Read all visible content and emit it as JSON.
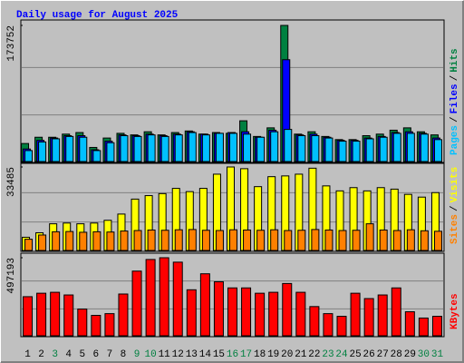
{
  "chart_data": [
    {
      "type": "bar",
      "title": "Daily usage for August 2025",
      "title_color": "#0000ff",
      "series": [
        {
          "name": "Hits",
          "color": "#008040",
          "values": [
            23000,
            31000,
            31000,
            35000,
            37000,
            18000,
            30000,
            36000,
            34000,
            38000,
            34000,
            37000,
            39000,
            35000,
            37000,
            36000,
            52000,
            32000,
            43000,
            173752,
            35000,
            38000,
            32000,
            28000,
            28000,
            33000,
            35000,
            40000,
            43000,
            38000,
            34000
          ]
        },
        {
          "name": "Files",
          "color": "#0000ff",
          "values": [
            16000,
            27000,
            30000,
            33000,
            33000,
            15000,
            26000,
            34000,
            33000,
            35000,
            33000,
            35000,
            38000,
            35000,
            36000,
            37000,
            38000,
            31000,
            40000,
            130000,
            34000,
            35000,
            31000,
            27000,
            27000,
            30000,
            32000,
            37000,
            38000,
            36000,
            30000
          ]
        },
        {
          "name": "Pages",
          "color": "#00c0ff",
          "values": [
            14000,
            25000,
            29000,
            32000,
            31000,
            14000,
            24000,
            33000,
            32000,
            34000,
            32000,
            34000,
            37000,
            34000,
            36000,
            36000,
            35000,
            31000,
            38000,
            41000,
            33000,
            33000,
            30000,
            26000,
            26000,
            29000,
            31000,
            36000,
            36000,
            35000,
            28000
          ]
        }
      ],
      "separator": "/",
      "ylim": [
        0,
        173752
      ],
      "yticks": [
        173752
      ]
    },
    {
      "type": "bar",
      "series": [
        {
          "name": "Visits",
          "color": "#ffff00",
          "values": [
            5300,
            7100,
            10700,
            11000,
            10700,
            11000,
            12100,
            14600,
            20600,
            22000,
            22800,
            24900,
            23600,
            24900,
            30600,
            33485,
            32800,
            25600,
            29600,
            29900,
            30600,
            33000,
            25900,
            23900,
            25200,
            23900,
            25200,
            24600,
            22500,
            21400,
            23200
          ]
        },
        {
          "name": "Sites",
          "color": "#ff8000",
          "values": [
            4500,
            6200,
            7500,
            7600,
            7300,
            7500,
            7400,
            7800,
            8000,
            8200,
            8100,
            8300,
            8400,
            8100,
            8000,
            8300,
            8200,
            8100,
            8300,
            8000,
            8100,
            8400,
            8200,
            8000,
            8100,
            10700,
            8200,
            8000,
            8300,
            7900,
            7700
          ]
        }
      ],
      "separator": "/",
      "ylim": [
        0,
        33485
      ],
      "yticks": [
        33485
      ]
    },
    {
      "type": "bar",
      "series": [
        {
          "name": "KBytes",
          "color": "#ff0000",
          "values": [
            249000,
            271000,
            277000,
            260000,
            170000,
            130000,
            141000,
            266000,
            412000,
            486000,
            497193,
            469000,
            293000,
            395000,
            344000,
            305000,
            305000,
            271000,
            277000,
            333000,
            277000,
            186000,
            141000,
            124000,
            271000,
            237000,
            260000,
            305000,
            153000,
            113000,
            124000
          ]
        }
      ],
      "ylim": [
        0,
        497193
      ],
      "yticks": [
        497193
      ],
      "categories": [
        "1",
        "2",
        "3",
        "4",
        "5",
        "6",
        "7",
        "8",
        "9",
        "10",
        "11",
        "12",
        "13",
        "14",
        "15",
        "16",
        "17",
        "18",
        "19",
        "20",
        "21",
        "22",
        "23",
        "24",
        "25",
        "26",
        "27",
        "28",
        "29",
        "30",
        "31"
      ],
      "label_colors": [
        "#000000",
        "#000000",
        "#008040",
        "#000000",
        "#000000",
        "#000000",
        "#000000",
        "#000000",
        "#008040",
        "#008040",
        "#000000",
        "#000000",
        "#000000",
        "#000000",
        "#000000",
        "#008040",
        "#008040",
        "#000000",
        "#000000",
        "#000000",
        "#000000",
        "#000000",
        "#008040",
        "#008040",
        "#000000",
        "#000000",
        "#000000",
        "#000000",
        "#000000",
        "#008040",
        "#008040"
      ]
    }
  ]
}
